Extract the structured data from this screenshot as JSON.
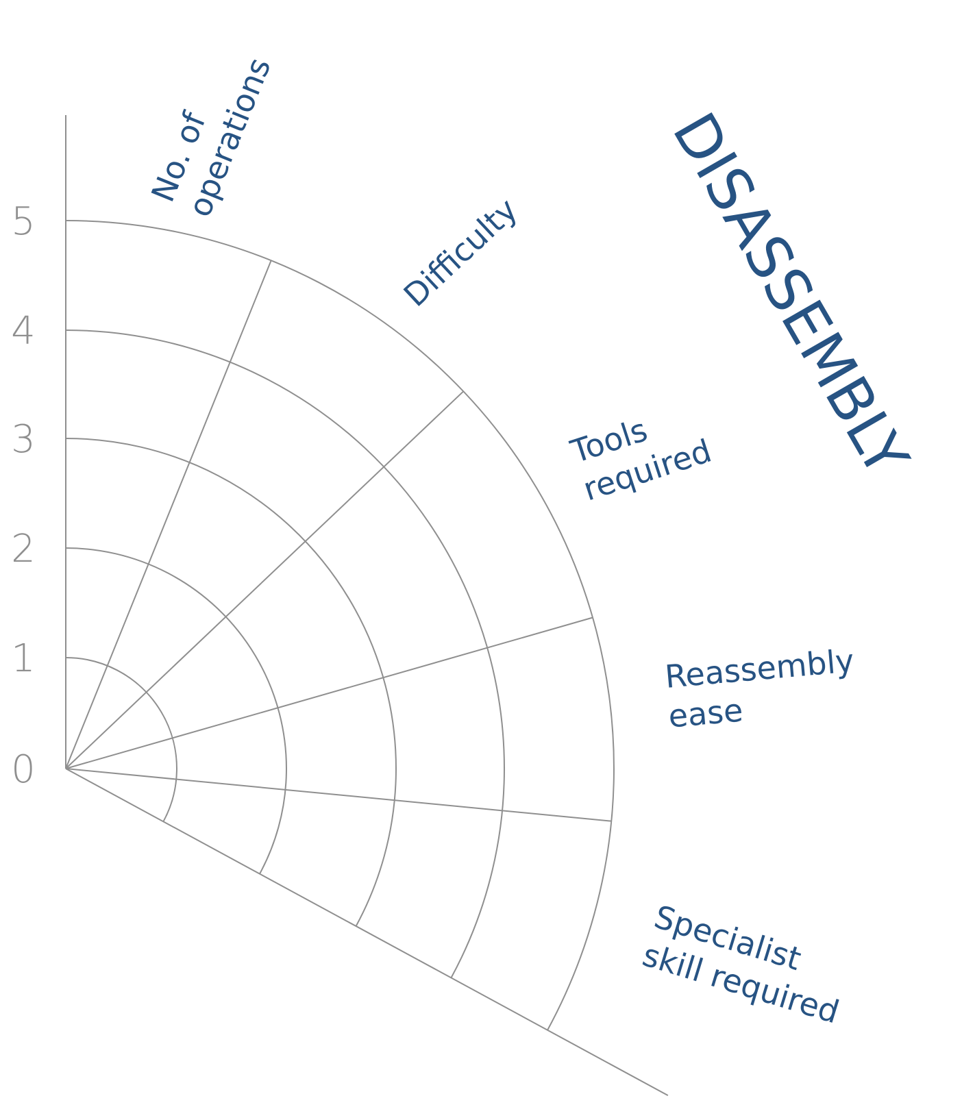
{
  "title": "DISASSEMBLY",
  "scale_labels": [
    "0",
    "1",
    "2",
    "3",
    "4",
    "5"
  ],
  "categories": [
    {
      "lines": [
        "No. of",
        "operations"
      ]
    },
    {
      "lines": [
        "Difficulty"
      ]
    },
    {
      "lines": [
        "Tools",
        "required"
      ]
    },
    {
      "lines": [
        "Reassembly",
        "ease"
      ]
    },
    {
      "lines": [
        "Specialist",
        "skill required"
      ]
    }
  ],
  "colors": {
    "grid": "#8f8f8f",
    "text": "#275383",
    "ticks": "#8f8f8f"
  }
}
